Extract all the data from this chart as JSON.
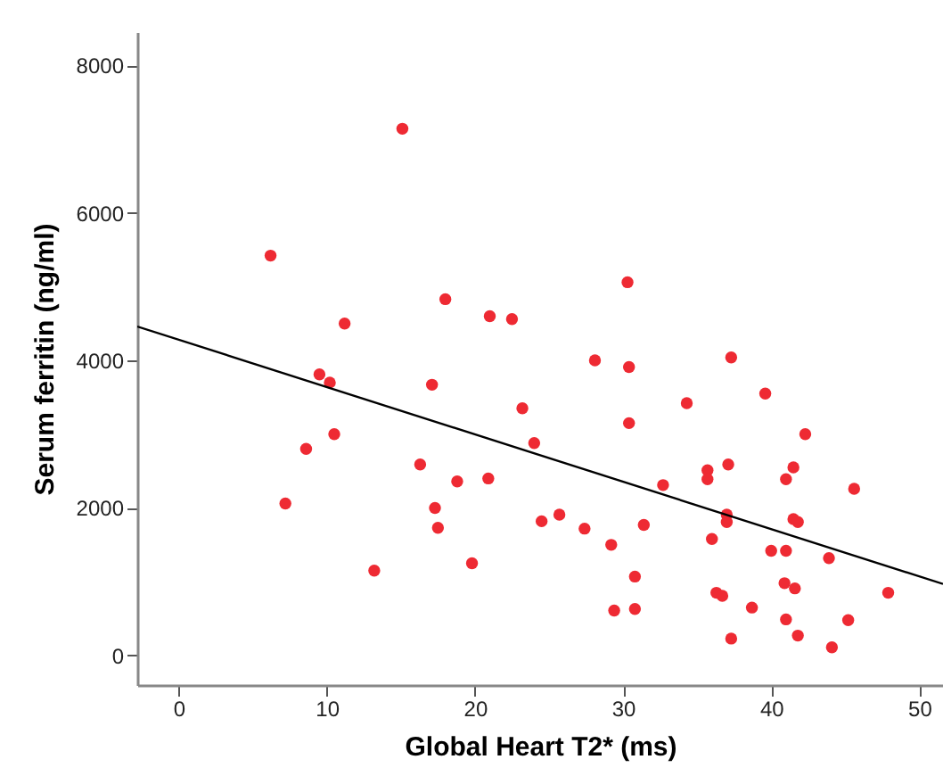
{
  "chart_data": {
    "type": "scatter",
    "xlabel": "Global Heart T2* (ms)",
    "ylabel": "Serum ferritin (ng/ml)",
    "xlim": [
      -2.8,
      51.6
    ],
    "ylim": [
      -400,
      8450
    ],
    "xticks": [
      0,
      10,
      20,
      30,
      40,
      50
    ],
    "yticks": [
      0,
      2000,
      4000,
      6000,
      8000
    ],
    "grid": false,
    "series": [
      {
        "color": "#ee2a33",
        "marker": "circle",
        "x": [
          15.1,
          6.2,
          18.0,
          11.2,
          21.0,
          22.5,
          9.5,
          10.2,
          17.1,
          30.3,
          28.1,
          30.4,
          37.3,
          23.2,
          24.0,
          10.5,
          8.6,
          16.3,
          7.2,
          18.8,
          20.9,
          17.3,
          17.5,
          24.5,
          13.2,
          19.8,
          34.3,
          39.6,
          30.4,
          42.3,
          37.1,
          35.7,
          35.7,
          41.5,
          41.0,
          32.7,
          45.6,
          25.7,
          27.4,
          31.4,
          29.2,
          37.0,
          37.0,
          36.0,
          41.5,
          41.8,
          40.0,
          41.0,
          43.9,
          30.8,
          47.9,
          36.3,
          36.7,
          40.9,
          41.6,
          38.7,
          29.4,
          30.8,
          41.0,
          45.2,
          37.3,
          41.8,
          44.1
        ],
        "values": [
          7140,
          5420,
          4830,
          4500,
          4600,
          4560,
          3810,
          3700,
          3670,
          5060,
          4000,
          3910,
          4040,
          3350,
          2880,
          3000,
          2800,
          2590,
          2060,
          2360,
          2400,
          2000,
          1730,
          1820,
          1150,
          1250,
          3420,
          3550,
          3150,
          3000,
          2590,
          2510,
          2390,
          2550,
          2390,
          2310,
          2260,
          1910,
          1720,
          1770,
          1500,
          1910,
          1810,
          1580,
          1850,
          1810,
          1420,
          1420,
          1320,
          1070,
          850,
          850,
          810,
          980,
          910,
          650,
          610,
          630,
          490,
          480,
          230,
          270,
          110
        ]
      },
      {
        "type": "line",
        "color": "#000000",
        "x": [
          -2.8,
          51.6
        ],
        "values": [
          4460,
          970
        ]
      }
    ]
  }
}
